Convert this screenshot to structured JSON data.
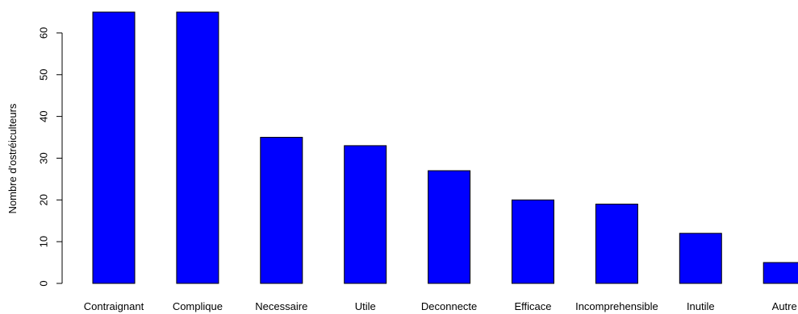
{
  "chart_data": {
    "type": "bar",
    "ylabel": "Nombre d'ostréiculteurs",
    "categories": [
      "Contraignant",
      "Complique",
      "Necessaire",
      "Utile",
      "Deconnecte",
      "Efficace",
      "Incomprehensible",
      "Inutile",
      "Autre"
    ],
    "values": [
      65,
      65,
      35,
      33,
      27,
      20,
      19,
      12,
      5
    ],
    "yticks": [
      0,
      10,
      20,
      30,
      40,
      50,
      60
    ],
    "ylim": [
      0,
      65
    ],
    "bar_color": "#0000ff",
    "border_color": "#000000",
    "grid": false,
    "legend": "none"
  }
}
